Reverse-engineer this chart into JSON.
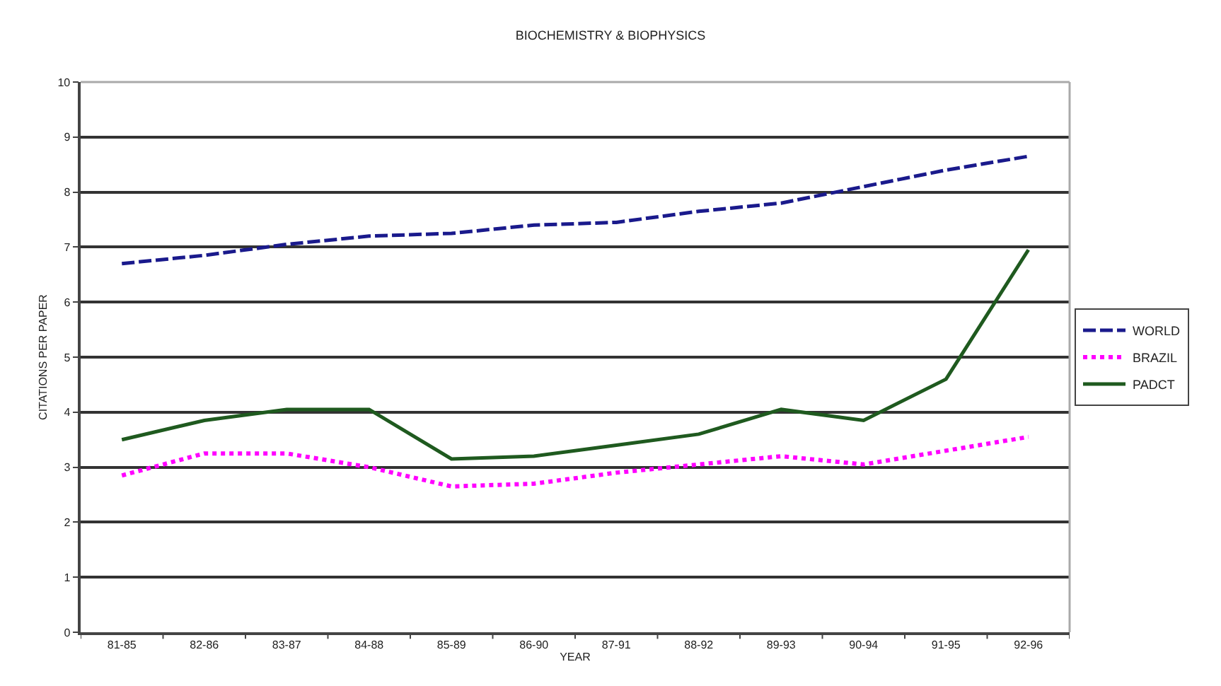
{
  "chart_data": {
    "type": "line",
    "title": "BIOCHEMISTRY & BIOPHYSICS",
    "xlabel": "YEAR",
    "ylabel": "CITATIONS PER PAPER",
    "categories": [
      "81-85",
      "82-86",
      "83-87",
      "84-88",
      "85-89",
      "86-90",
      "87-91",
      "88-92",
      "89-93",
      "90-94",
      "91-95",
      "92-96"
    ],
    "series": [
      {
        "name": "WORLD",
        "color": "#1a1a8c",
        "line_style": "dashed",
        "values": [
          6.7,
          6.85,
          7.05,
          7.2,
          7.25,
          7.4,
          7.45,
          7.65,
          7.8,
          8.1,
          8.4,
          8.65
        ]
      },
      {
        "name": "BRAZIL",
        "color": "#ff00ff",
        "line_style": "dotted",
        "values": [
          2.85,
          3.25,
          3.25,
          3.0,
          2.65,
          2.7,
          2.9,
          3.05,
          3.2,
          3.05,
          3.3,
          3.55
        ]
      },
      {
        "name": "PADCT",
        "color": "#1f5a1f",
        "line_style": "solid",
        "values": [
          3.5,
          3.85,
          4.05,
          4.05,
          3.15,
          3.2,
          3.4,
          3.6,
          4.05,
          3.85,
          4.6,
          6.95
        ]
      }
    ],
    "ylim": [
      0,
      10
    ],
    "yticks": [
      0,
      1,
      2,
      3,
      4,
      5,
      6,
      7,
      8,
      9,
      10
    ],
    "grid": "y",
    "legend": "right",
    "marker": "none"
  }
}
